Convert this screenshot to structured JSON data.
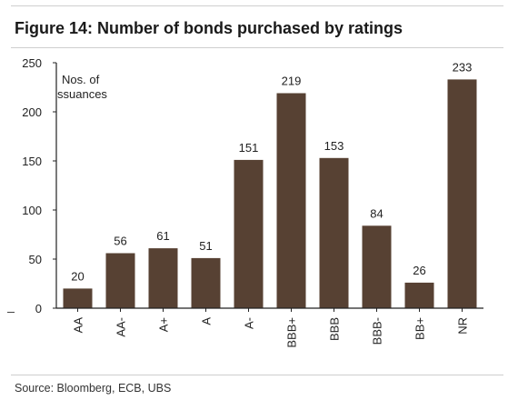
{
  "figure": {
    "title": "Figure 14: Number of bonds purchased by ratings",
    "source": "Source: Bloomberg, ECB, UBS"
  },
  "colors": {
    "bar": "#574133",
    "axis": "#222222",
    "rule": "#cfcfcf"
  },
  "chart_data": {
    "type": "bar",
    "title": "Figure 14: Number of bonds purchased by ratings",
    "ylabel_lines": [
      "Nos. of",
      "ssuances"
    ],
    "xlabel": "",
    "categories": [
      "AA",
      "AA-",
      "A+",
      "A",
      "A-",
      "BBB+",
      "BBB",
      "BBB-",
      "BB+",
      "NR"
    ],
    "series": [
      {
        "values": [
          20,
          56,
          61,
          51,
          151,
          219,
          153,
          84,
          26,
          233
        ]
      }
    ],
    "ylim": [
      0,
      250
    ],
    "yticks": [
      0,
      50,
      100,
      150,
      200,
      250
    ],
    "grid": false,
    "legend": "none",
    "data_labels": true
  }
}
